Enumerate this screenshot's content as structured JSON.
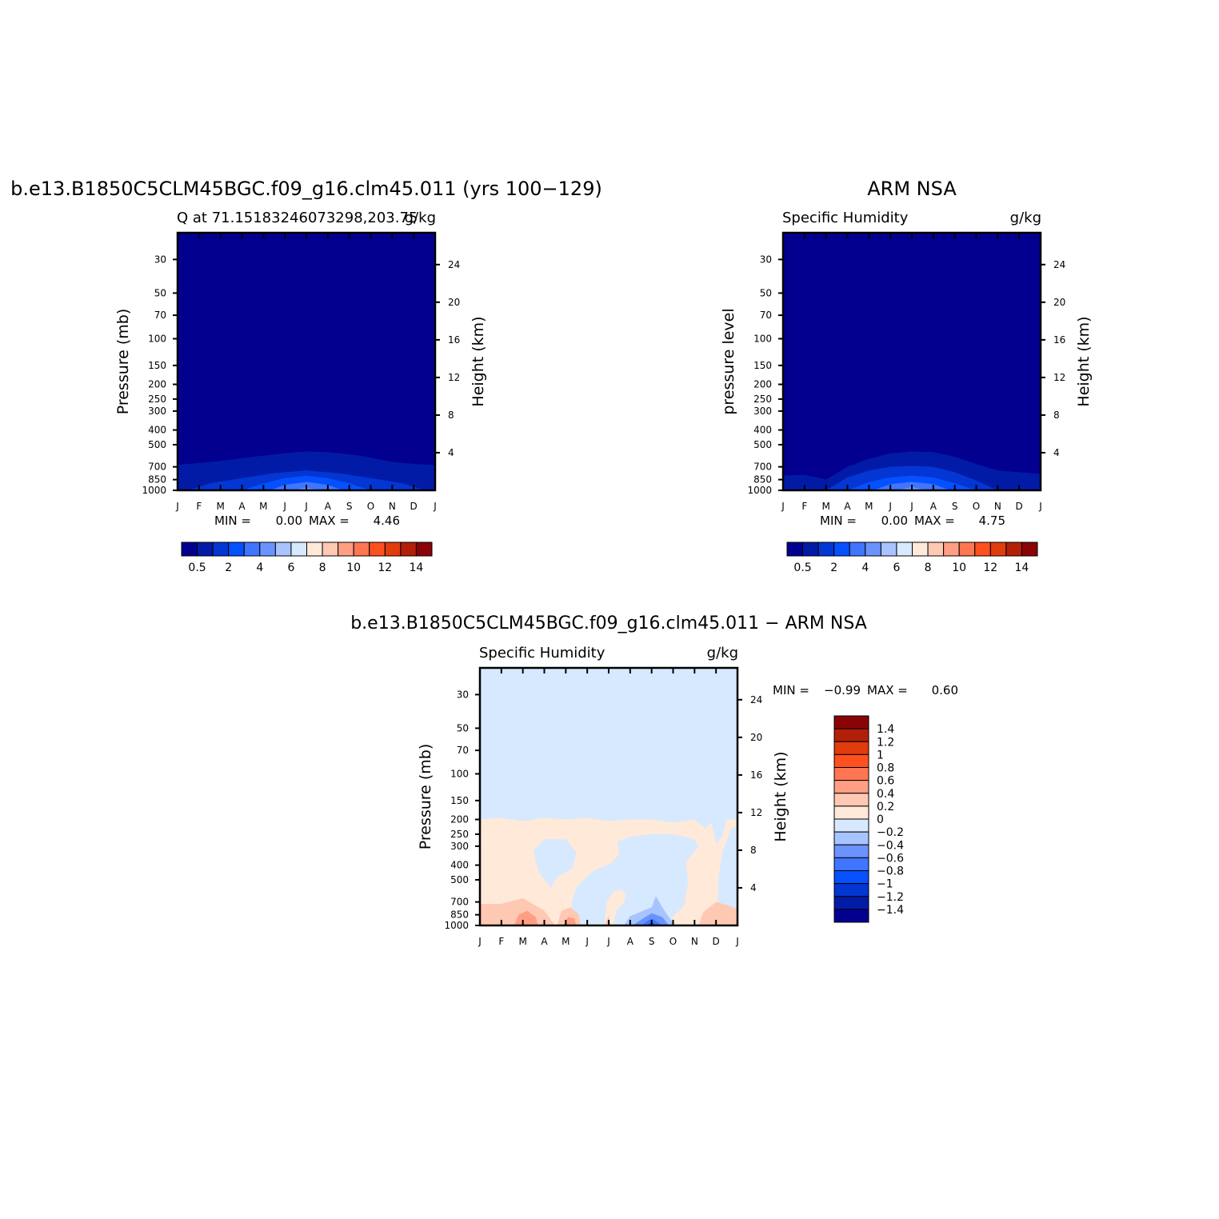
{
  "chart_data": [
    {
      "type": "heatmap",
      "title": "b.e13.B1850C5CLM45BGC.f09_g16.clm45.011 (yrs 100−129)",
      "subtitle_left": "Q at 71.15183246073298,203.75",
      "units": "g/kg",
      "ylabel": "Pressure (mb)",
      "y2label": "Height (km)",
      "x_ticks": [
        "J",
        "F",
        "M",
        "A",
        "M",
        "J",
        "J",
        "A",
        "S",
        "O",
        "N",
        "D",
        "J"
      ],
      "y_ticks": [
        "30",
        "50",
        "70",
        "100",
        "150",
        "200",
        "250",
        "300",
        "400",
        "500",
        "700",
        "850",
        "1000"
      ],
      "y2_ticks": [
        "24",
        "20",
        "16",
        "12",
        "8",
        "4"
      ],
      "min_label": "MIN =",
      "min_value": "0.00",
      "max_label": "MAX =",
      "max_value": "4.46",
      "colorbar_labels": [
        "0.5",
        "2",
        "4",
        "6",
        "8",
        "10",
        "12",
        "14"
      ],
      "background_level": "0.5",
      "contours": [
        {
          "level": "0.5-1",
          "top": [
            [
              0,
              680
            ],
            [
              2,
              640
            ],
            [
              4,
              590
            ],
            [
              5.5,
              560
            ],
            [
              6,
              555
            ],
            [
              7,
              560
            ],
            [
              8.5,
              590
            ],
            [
              10,
              650
            ],
            [
              11,
              670
            ],
            [
              12,
              680
            ]
          ]
        },
        {
          "level": "1-2",
          "top": [
            [
              0.5,
              1000
            ],
            [
              1.5,
              900
            ],
            [
              3,
              830
            ],
            [
              4.5,
              770
            ],
            [
              6,
              740
            ],
            [
              7.5,
              770
            ],
            [
              9,
              830
            ],
            [
              10.5,
              900
            ],
            [
              11.5,
              1000
            ]
          ]
        },
        {
          "level": "2-3",
          "top": [
            [
              3,
              1000
            ],
            [
              4,
              900
            ],
            [
              5,
              830
            ],
            [
              6,
              800
            ],
            [
              7,
              830
            ],
            [
              8,
              900
            ],
            [
              9,
              1000
            ]
          ]
        },
        {
          "level": "3-4",
          "top": [
            [
              4.3,
              1000
            ],
            [
              5,
              920
            ],
            [
              6,
              880
            ],
            [
              7,
              920
            ],
            [
              7.7,
              1000
            ]
          ]
        },
        {
          "level": "4-5",
          "top": [
            [
              5.4,
              1000
            ],
            [
              6,
              960
            ],
            [
              6.6,
              1000
            ]
          ]
        }
      ]
    },
    {
      "type": "heatmap",
      "title": "ARM NSA",
      "subtitle_left": "Specific Humidity",
      "units": "g/kg",
      "ylabel": "pressure level",
      "y2label": "Height (km)",
      "x_ticks": [
        "J",
        "F",
        "M",
        "A",
        "M",
        "J",
        "J",
        "A",
        "S",
        "O",
        "N",
        "D",
        "J"
      ],
      "y_ticks": [
        "30",
        "50",
        "70",
        "100",
        "150",
        "200",
        "250",
        "300",
        "400",
        "500",
        "700",
        "850",
        "1000"
      ],
      "y2_ticks": [
        "24",
        "20",
        "16",
        "12",
        "8",
        "4"
      ],
      "min_label": "MIN =",
      "min_value": "0.00",
      "max_label": "MAX =",
      "max_value": "4.75",
      "colorbar_labels": [
        "0.5",
        "2",
        "4",
        "6",
        "8",
        "10",
        "12",
        "14"
      ],
      "background_level": "0.5",
      "contours": [
        {
          "level": "0.5-1",
          "top": [
            [
              0,
              800
            ],
            [
              1,
              790
            ],
            [
              2,
              850
            ],
            [
              3,
              700
            ],
            [
              4,
              620
            ],
            [
              5,
              570
            ],
            [
              6,
              555
            ],
            [
              7,
              560
            ],
            [
              8,
              600
            ],
            [
              9,
              670
            ],
            [
              10,
              740
            ],
            [
              11,
              760
            ],
            [
              12,
              780
            ]
          ]
        },
        {
          "level": "1-2",
          "top": [
            [
              2,
              1000
            ],
            [
              3,
              820
            ],
            [
              4,
              740
            ],
            [
              5,
              700
            ],
            [
              6,
              690
            ],
            [
              7,
              700
            ],
            [
              8,
              760
            ],
            [
              9,
              860
            ],
            [
              10,
              1000
            ]
          ]
        },
        {
          "level": "2-3",
          "top": [
            [
              3,
              1000
            ],
            [
              4,
              880
            ],
            [
              5,
              820
            ],
            [
              6,
              800
            ],
            [
              7,
              820
            ],
            [
              8,
              900
            ],
            [
              9,
              1000
            ]
          ]
        },
        {
          "level": "3-4",
          "top": [
            [
              4.2,
              1000
            ],
            [
              5,
              910
            ],
            [
              6,
              880
            ],
            [
              7,
              910
            ],
            [
              7.8,
              1000
            ]
          ]
        },
        {
          "level": "4-5",
          "top": [
            [
              5.3,
              1000
            ],
            [
              6,
              950
            ],
            [
              6.7,
              1000
            ]
          ]
        }
      ]
    },
    {
      "type": "heatmap",
      "title": "b.e13.B1850C5CLM45BGC.f09_g16.clm45.011 − ARM NSA",
      "subtitle_left": "Specific Humidity",
      "units": "g/kg",
      "ylabel": "Pressure (mb)",
      "y2label": "Height (km)",
      "x_ticks": [
        "J",
        "F",
        "M",
        "A",
        "M",
        "J",
        "J",
        "A",
        "S",
        "O",
        "N",
        "D",
        "J"
      ],
      "y_ticks": [
        "30",
        "50",
        "70",
        "100",
        "150",
        "200",
        "250",
        "300",
        "400",
        "500",
        "700",
        "850",
        "1000"
      ],
      "y2_ticks": [
        "24",
        "20",
        "16",
        "12",
        "8",
        "4"
      ],
      "min_label": "MIN =",
      "min_value": "−0.99",
      "max_label": "MAX =",
      "max_value": "0.60",
      "colorbar_labels": [
        "1.4",
        "1.2",
        "1",
        "0.8",
        "0.6",
        "0.4",
        "0.2",
        "0",
        "−0.2",
        "−0.4",
        "−0.6",
        "−0.8",
        "−1",
        "−1.2",
        "−1.4"
      ],
      "background_level": "-0.2-0",
      "regions": [
        {
          "level": "0-0.2",
          "points": [
            [
              0,
              1000
            ],
            [
              0,
              200
            ],
            [
              1,
              195
            ],
            [
              2,
              205
            ],
            [
              3,
              195
            ],
            [
              4,
              200
            ],
            [
              5,
              195
            ],
            [
              6,
              205
            ],
            [
              7,
              200
            ],
            [
              8,
              200
            ],
            [
              9,
              210
            ],
            [
              10,
              200
            ],
            [
              10.5,
              230
            ],
            [
              10.8,
              210
            ],
            [
              11,
              290
            ],
            [
              11.3,
              260
            ],
            [
              11.5,
              200
            ],
            [
              12,
              200
            ],
            [
              12,
              1000
            ]
          ]
        },
        {
          "level": "-0.2-0",
          "points": [
            [
              2.5,
              320
            ],
            [
              3,
              270
            ],
            [
              4,
              270
            ],
            [
              4.5,
              330
            ],
            [
              4.3,
              420
            ],
            [
              3.6,
              480
            ],
            [
              3.3,
              560
            ],
            [
              2.8,
              460
            ],
            [
              2.6,
              380
            ]
          ]
        },
        {
          "level": "-0.2-0",
          "points": [
            [
              4.2,
              1000
            ],
            [
              4.3,
              680
            ],
            [
              4.5,
              560
            ],
            [
              5,
              470
            ],
            [
              5.5,
              420
            ],
            [
              6,
              400
            ],
            [
              6.5,
              340
            ],
            [
              6.4,
              280
            ],
            [
              7,
              260
            ],
            [
              8,
              250
            ],
            [
              9,
              250
            ],
            [
              10,
              270
            ],
            [
              10.2,
              300
            ],
            [
              9.6,
              380
            ],
            [
              9.7,
              520
            ],
            [
              9.5,
              750
            ],
            [
              9,
              870
            ],
            [
              8.9,
              1000
            ]
          ]
        },
        {
          "level": "-0.2-0",
          "points": [
            [
              11.1,
              1000
            ],
            [
              11.1,
              500
            ],
            [
              11.3,
              330
            ],
            [
              11.7,
              230
            ],
            [
              12,
              220
            ],
            [
              12,
              1000
            ]
          ]
        },
        {
          "level": "0-0.2",
          "points": [
            [
              5.8,
              1000
            ],
            [
              5.9,
              700
            ],
            [
              6.2,
              600
            ],
            [
              6.6,
              580
            ],
            [
              6.8,
              620
            ],
            [
              6.7,
              720
            ],
            [
              6.4,
              780
            ],
            [
              6.2,
              1000
            ]
          ]
        },
        {
          "level": "0.2-0.4",
          "points": [
            [
              0,
              1000
            ],
            [
              0,
              720
            ],
            [
              1,
              720
            ],
            [
              2,
              660
            ],
            [
              3,
              800
            ],
            [
              3.5,
              1000
            ]
          ]
        },
        {
          "level": "0.2-0.4",
          "points": [
            [
              3.6,
              1000
            ],
            [
              3.8,
              800
            ],
            [
              4.2,
              760
            ],
            [
              4.6,
              840
            ],
            [
              4.7,
              1000
            ]
          ]
        },
        {
          "level": "0.2-0.4",
          "points": [
            [
              5.8,
              1000
            ],
            [
              6,
              860
            ],
            [
              6.1,
              1000
            ]
          ]
        },
        {
          "level": "0.2-0.4",
          "points": [
            [
              10.2,
              1000
            ],
            [
              10.4,
              820
            ],
            [
              11,
              700
            ],
            [
              11.6,
              740
            ],
            [
              12,
              780
            ],
            [
              12,
              1000
            ]
          ]
        },
        {
          "level": "0.4-0.6",
          "points": [
            [
              1.6,
              1000
            ],
            [
              1.8,
              850
            ],
            [
              2.2,
              800
            ],
            [
              2.6,
              880
            ],
            [
              2.7,
              1000
            ]
          ]
        },
        {
          "level": "0.4-0.6",
          "points": [
            [
              3.9,
              1000
            ],
            [
              4.1,
              880
            ],
            [
              4.4,
              900
            ],
            [
              4.5,
              1000
            ]
          ]
        },
        {
          "level": "-0.4--0.2",
          "points": [
            [
              6.7,
              1000
            ],
            [
              7,
              870
            ],
            [
              7.6,
              800
            ],
            [
              8,
              760
            ],
            [
              8.2,
              640
            ],
            [
              8.5,
              760
            ],
            [
              8.8,
              880
            ],
            [
              9.1,
              1000
            ]
          ]
        },
        {
          "level": "-0.6--0.4",
          "points": [
            [
              7.1,
              1000
            ],
            [
              7.6,
              900
            ],
            [
              8,
              830
            ],
            [
              8.5,
              880
            ],
            [
              8.8,
              1000
            ]
          ]
        },
        {
          "level": "-0.8--0.6",
          "points": [
            [
              7.5,
              1000
            ],
            [
              8,
              900
            ],
            [
              8.5,
              1000
            ]
          ]
        },
        {
          "level": "-1--0.8",
          "points": [
            [
              7.8,
              1000
            ],
            [
              8,
              950
            ],
            [
              8.2,
              1000
            ]
          ]
        }
      ]
    }
  ],
  "colors": {
    "seq": [
      "#03008f",
      "#021ba7",
      "#0336d3",
      "#0550ff",
      "#4075ff",
      "#6b93ff",
      "#a7c4ff",
      "#d7e9ff",
      "#ffe9d9",
      "#ffc8b2",
      "#ff9e83",
      "#ff7652",
      "#ff5020",
      "#e03c0d",
      "#b32009",
      "#8a0407"
    ],
    "diverge": [
      "#8a0407",
      "#b32009",
      "#e03c0d",
      "#ff5020",
      "#ff7652",
      "#ff9e83",
      "#ffc8b2",
      "#ffe9d9",
      "#d7e9ff",
      "#a7c4ff",
      "#6b93ff",
      "#4075ff",
      "#0550ff",
      "#0336d3",
      "#021ba7",
      "#03008f"
    ],
    "level_map": {
      "0.5": "#03008f",
      "0.5-1": "#021ba7",
      "1-2": "#0336d3",
      "2-3": "#0550ff",
      "3-4": "#4075ff",
      "4-5": "#6b93ff",
      "-0.2-0": "#d7e9ff",
      "0-0.2": "#ffe9d9",
      "0.2-0.4": "#ffc8b2",
      "0.4-0.6": "#ff9e83",
      "-0.4--0.2": "#a7c4ff",
      "-0.6--0.4": "#6b93ff",
      "-0.8--0.6": "#4075ff",
      "-1--0.8": "#0550ff"
    }
  }
}
